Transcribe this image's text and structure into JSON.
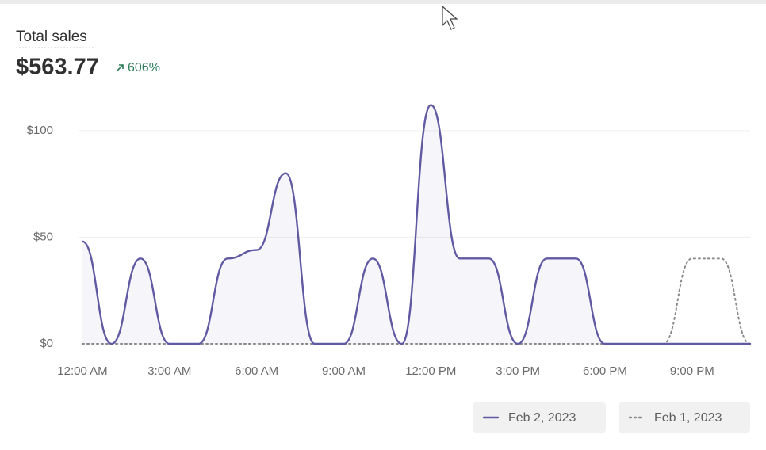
{
  "card": {
    "title": "Total sales",
    "total": "$563.77",
    "change": "606%"
  },
  "chart_data": {
    "type": "line",
    "categories": [
      "12:00 AM",
      null,
      null,
      "3:00 AM",
      null,
      null,
      "6:00 AM",
      null,
      null,
      "9:00 AM",
      null,
      null,
      "12:00 PM",
      null,
      null,
      "3:00 PM",
      null,
      null,
      "6:00 PM",
      null,
      null,
      "9:00 PM",
      null,
      null
    ],
    "series": [
      {
        "name": "Feb 2, 2023",
        "color": "#5f5aa2",
        "line_style": "solid",
        "area": true,
        "values": [
          48,
          0,
          40,
          0,
          0,
          40,
          44,
          80,
          0,
          0,
          40,
          0,
          112,
          40,
          40,
          0,
          40,
          40,
          0,
          0,
          0,
          0,
          0,
          0
        ]
      },
      {
        "name": "Feb 1, 2023",
        "color": "#8a8a8a",
        "line_style": "dotted",
        "area": false,
        "values": [
          0,
          0,
          0,
          0,
          0,
          0,
          0,
          0,
          0,
          0,
          0,
          0,
          0,
          0,
          0,
          0,
          0,
          0,
          0,
          0,
          0,
          40,
          40,
          0
        ]
      }
    ],
    "ylim": [
      0,
      120
    ],
    "yticks": [
      {
        "value": 0,
        "label": "$0"
      },
      {
        "value": 50,
        "label": "$50"
      },
      {
        "value": 100,
        "label": "$100"
      }
    ],
    "grid": true
  }
}
